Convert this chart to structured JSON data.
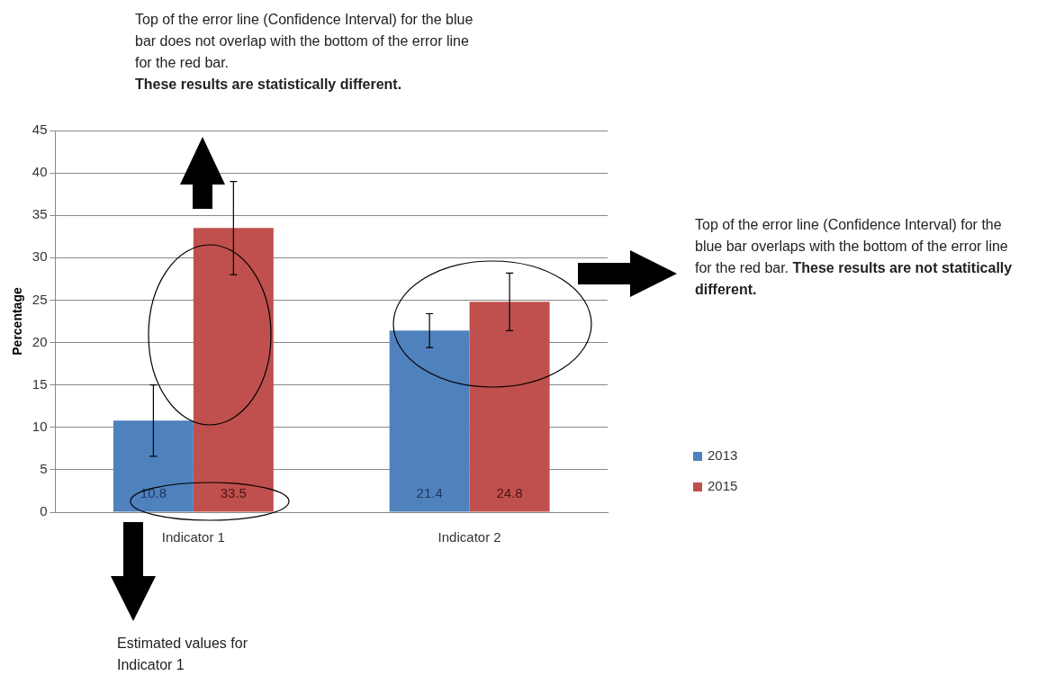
{
  "chart_data": {
    "type": "bar",
    "ylabel": "Percentage",
    "categories": [
      "Indicator 1",
      "Indicator 2"
    ],
    "series": [
      {
        "name": "2013",
        "color": "#4f81bd",
        "values": [
          10.8,
          21.4
        ],
        "errors": [
          4.2,
          2.0
        ]
      },
      {
        "name": "2015",
        "color": "#c0504d",
        "values": [
          33.5,
          24.8
        ],
        "errors": [
          5.5,
          3.4
        ]
      }
    ],
    "ylim": [
      0,
      45
    ],
    "yticks": [
      0,
      5,
      10,
      15,
      20,
      25,
      30,
      35,
      40,
      45
    ],
    "grid": "y",
    "legend": "right",
    "data_labels": true,
    "annotations": [
      "Top of the error line (Confidence Interval) for the blue bar does not overlap with the bottom of the error line for the red bar.",
      "These results are statistically different.",
      "Top of the error line (Confidence Interval) for the blue bar overlaps with the bottom of the error line for the red bar.",
      "These results are not statitically different.",
      "Estimated values for Indicator 1"
    ]
  }
}
